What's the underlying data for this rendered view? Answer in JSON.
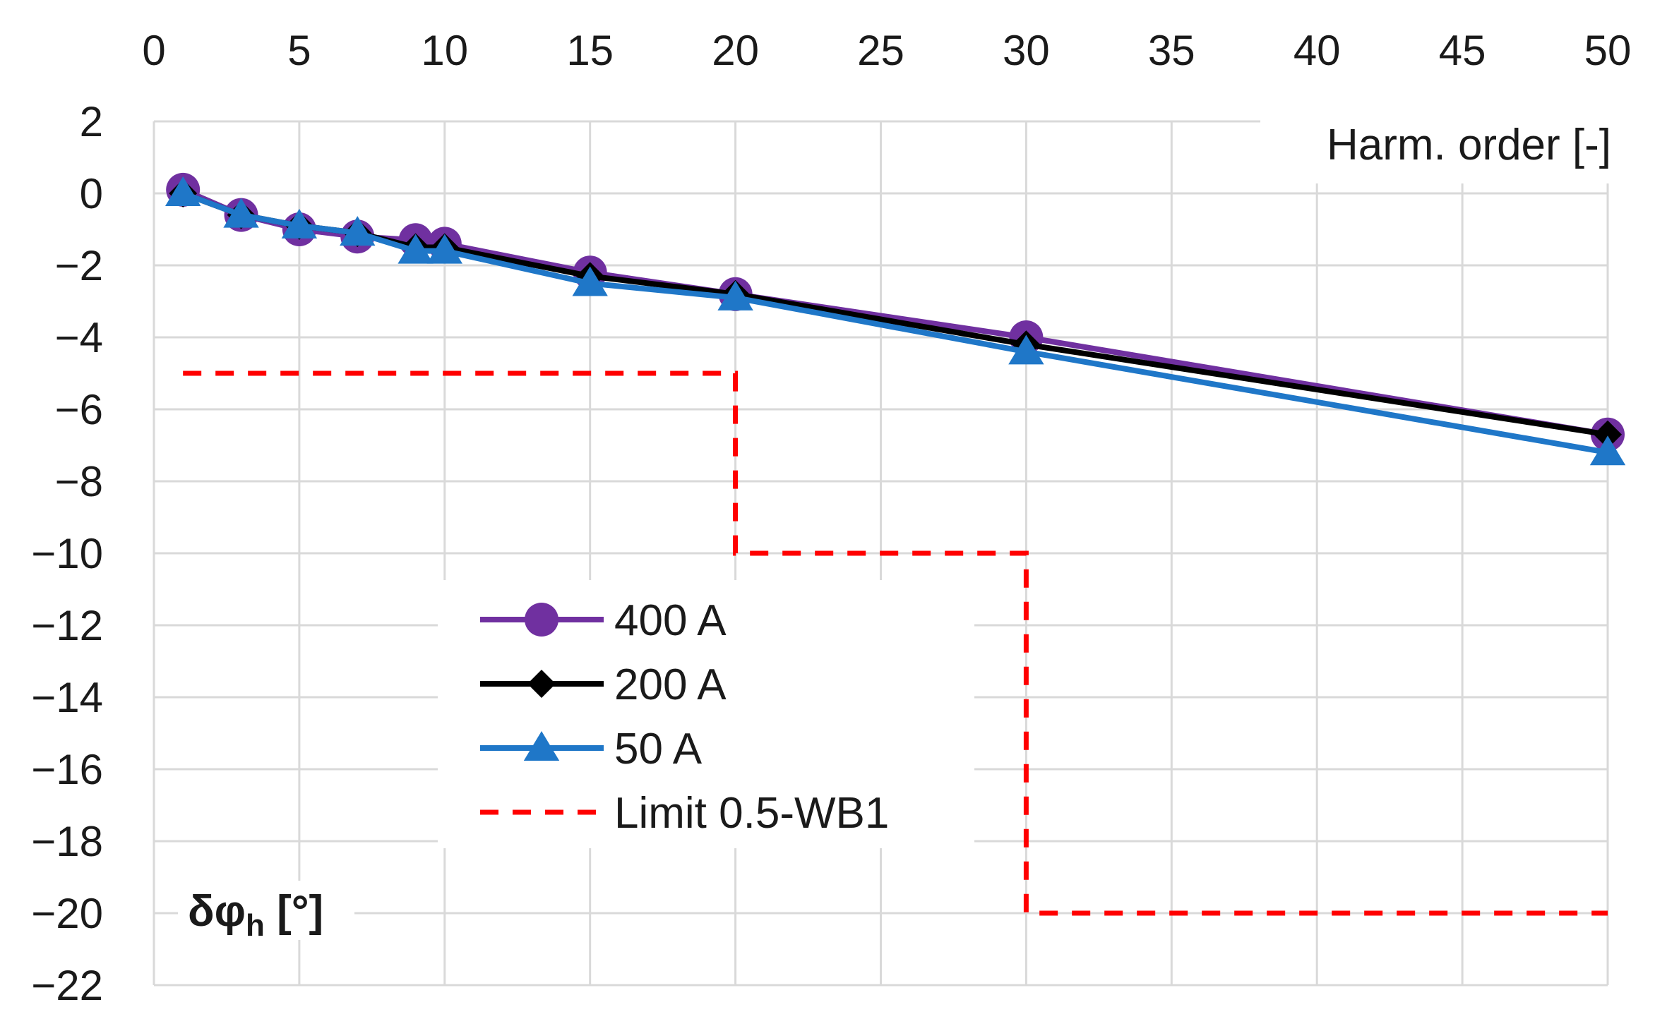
{
  "chart_data": {
    "type": "line",
    "title": "",
    "xlabel": "Harm. order [-]",
    "ylabel_main": "δφ",
    "ylabel_sub": "h",
    "ylabel_unit": " [°]",
    "xlim": [
      0,
      50
    ],
    "ylim": [
      -22,
      2
    ],
    "xticks": [
      0,
      5,
      10,
      15,
      20,
      25,
      30,
      35,
      40,
      45,
      50
    ],
    "yticks": [
      2,
      0,
      -2,
      -4,
      -6,
      -8,
      -10,
      -12,
      -14,
      -16,
      -18,
      -20,
      -22
    ],
    "grid": true,
    "x_axis_position": "top",
    "legend_position": "center-left",
    "series": [
      {
        "name": "400 A",
        "color": "#7030a0",
        "marker": "circle",
        "x": [
          1,
          3,
          5,
          7,
          9,
          10,
          15,
          20,
          30,
          50
        ],
        "values": [
          0.1,
          -0.6,
          -1.0,
          -1.2,
          -1.3,
          -1.4,
          -2.2,
          -2.8,
          -4.0,
          -6.7
        ]
      },
      {
        "name": "200 A",
        "color": "#000000",
        "marker": "diamond",
        "x": [
          1,
          3,
          5,
          7,
          9,
          10,
          15,
          20,
          30,
          50
        ],
        "values": [
          0.0,
          -0.6,
          -0.9,
          -1.1,
          -1.5,
          -1.5,
          -2.3,
          -2.8,
          -4.2,
          -6.7
        ]
      },
      {
        "name": "50 A",
        "color": "#1f77c8",
        "marker": "triangle",
        "x": [
          1,
          3,
          5,
          7,
          9,
          10,
          15,
          20,
          30,
          50
        ],
        "values": [
          0.0,
          -0.6,
          -0.9,
          -1.1,
          -1.6,
          -1.6,
          -2.5,
          -2.9,
          -4.4,
          -7.2
        ]
      },
      {
        "name": "Limit 0.5-WB1",
        "color": "#ff0000",
        "marker": "none",
        "dashed": true,
        "x": [
          1,
          20,
          20,
          30,
          30,
          50
        ],
        "values": [
          -5,
          -5,
          -10,
          -10,
          -20,
          -20
        ]
      }
    ]
  }
}
